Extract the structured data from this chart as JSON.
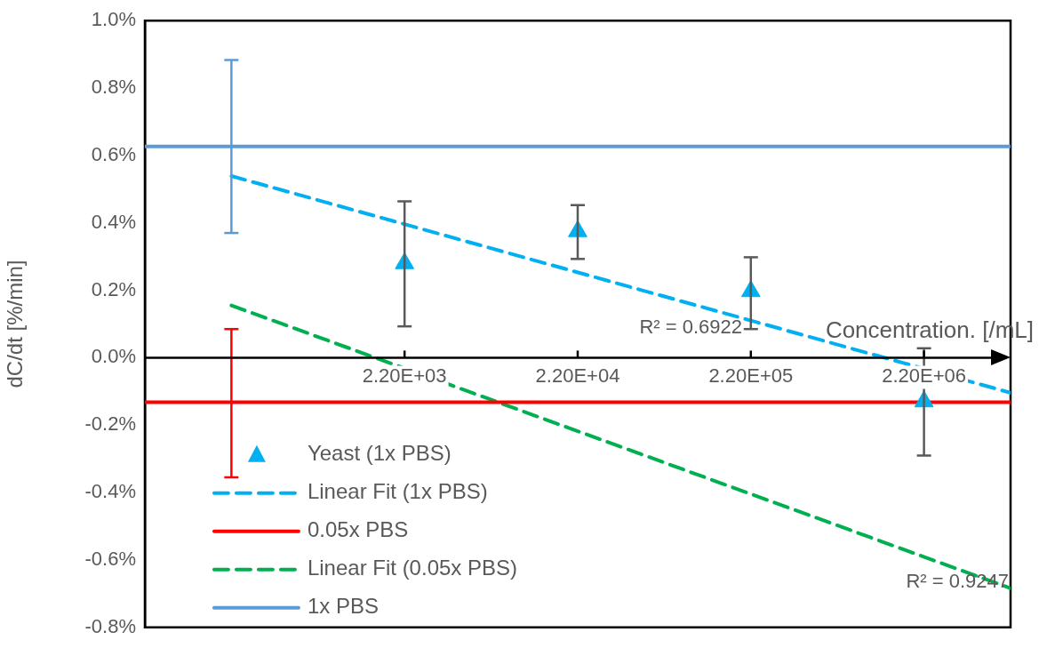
{
  "chart_data": {
    "type": "line",
    "xlabel": "Concentration. [/mL]",
    "ylabel": "dC/dt [%/min]",
    "log": "x",
    "xlim": [
      69.6,
      6957000
    ],
    "xticks": [
      {
        "value": 2200,
        "label": "2.20E+03"
      },
      {
        "value": 22000,
        "label": "2.20E+04"
      },
      {
        "value": 220000,
        "label": "2.20E+05"
      },
      {
        "value": 2200000,
        "label": "2.20E+06"
      }
    ],
    "series": [
      {
        "name": "Yeast (1x PBS)",
        "type": "scatter",
        "color": "#00b0f0",
        "marker": "triangle",
        "x": [
          2200,
          22000,
          220000,
          2200000
        ],
        "values": [
          0.28,
          0.375,
          0.197,
          -0.13
        ],
        "errors": [
          [
            0.093,
            0.464
          ],
          [
            0.293,
            0.453
          ],
          [
            0.085,
            0.298
          ],
          [
            -0.29,
            0.028
          ]
        ]
      },
      {
        "name": "Linear Fit (1x PBS)",
        "type": "line",
        "color": "#00b0f0",
        "line_style": "dashed",
        "x": [
          220,
          6957000
        ],
        "values": [
          0.539,
          -0.104
        ]
      },
      {
        "name": "0.05x PBS",
        "type": "line",
        "color": "#ff0000",
        "line_style": "solid",
        "x": [
          69.6,
          220,
          6957000
        ],
        "values": [
          -0.132,
          -0.132,
          -0.132
        ],
        "errors": [
          null,
          [
            -0.355,
            0.085
          ],
          null
        ]
      },
      {
        "name": "Linear Fit (0.05x PBS)",
        "type": "line",
        "color": "#00b050",
        "line_style": "dashed",
        "x": [
          220,
          6957000
        ],
        "values": [
          0.155,
          -0.684
        ]
      },
      {
        "name": "1x PBS",
        "type": "line",
        "color": "#5b9bd5",
        "line_style": "solid",
        "x": [
          69.6,
          220,
          6957000
        ],
        "values": [
          0.627,
          0.627,
          0.627
        ],
        "errors": [
          null,
          [
            0.37,
            0.883
          ],
          null
        ]
      }
    ],
    "ylim": [
      -0.8,
      1.0
    ],
    "yticks": [
      {
        "value": -0.8,
        "label": "-0.8%"
      },
      {
        "value": -0.6,
        "label": "-0.6%"
      },
      {
        "value": -0.4,
        "label": "-0.4%"
      },
      {
        "value": -0.2,
        "label": "-0.2%"
      },
      {
        "value": 0,
        "label": "0.0%"
      },
      {
        "value": 0.2,
        "label": "0.2%"
      },
      {
        "value": 0.4,
        "label": "0.4%"
      },
      {
        "value": 0.6,
        "label": "0.6%"
      },
      {
        "value": 0.8,
        "label": "0.8%"
      },
      {
        "value": 1.0,
        "label": "1.0%"
      }
    ],
    "annotations": [
      "R² = 0.6922",
      "R² = 0.9247"
    ],
    "legend": "bottom left",
    "marker": "none"
  }
}
